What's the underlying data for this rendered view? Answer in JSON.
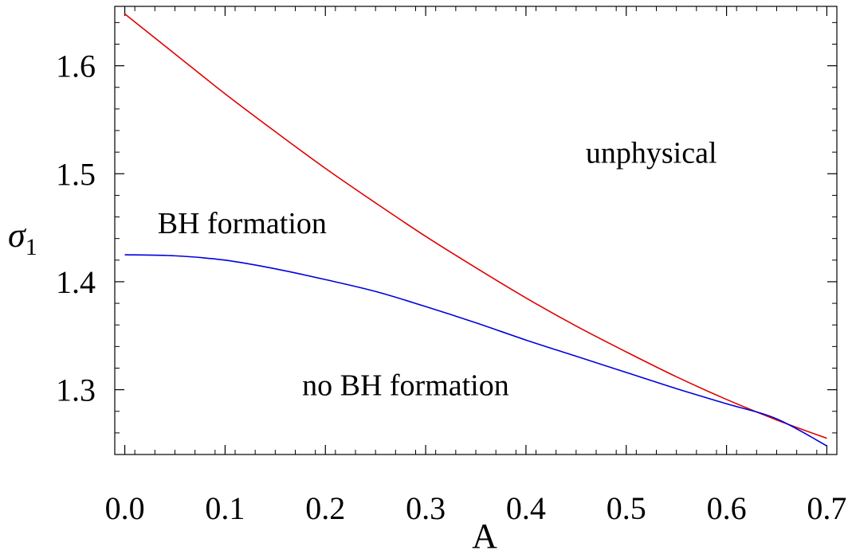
{
  "chart_data": {
    "type": "line",
    "xlabel": "A",
    "ylabel": "σ",
    "ylabel_subscript": "1",
    "xlim": [
      -0.01,
      0.71
    ],
    "ylim": [
      1.24,
      1.655
    ],
    "x_ticks": [
      {
        "value": 0.0,
        "label": "0.0"
      },
      {
        "value": 0.1,
        "label": "0.1"
      },
      {
        "value": 0.2,
        "label": "0.2"
      },
      {
        "value": 0.3,
        "label": "0.3"
      },
      {
        "value": 0.4,
        "label": "0.4"
      },
      {
        "value": 0.5,
        "label": "0.5"
      },
      {
        "value": 0.6,
        "label": "0.6"
      },
      {
        "value": 0.7,
        "label": "0.7"
      }
    ],
    "y_ticks": [
      {
        "value": 1.3,
        "label": "1.3"
      },
      {
        "value": 1.4,
        "label": "1.4"
      },
      {
        "value": 1.5,
        "label": "1.5"
      },
      {
        "value": 1.6,
        "label": "1.6"
      }
    ],
    "grid": false,
    "frame": true,
    "series": [
      {
        "color": "#e00000",
        "x": [
          0.0,
          0.05,
          0.1,
          0.15,
          0.2,
          0.25,
          0.3,
          0.35,
          0.4,
          0.45,
          0.5,
          0.55,
          0.6,
          0.65,
          0.7
        ],
        "y": [
          1.648,
          1.611,
          1.574,
          1.539,
          1.505,
          1.473,
          1.442,
          1.413,
          1.385,
          1.359,
          1.335,
          1.312,
          1.291,
          1.272,
          1.255
        ]
      },
      {
        "color": "#0000dd",
        "x": [
          0.0,
          0.05,
          0.1,
          0.15,
          0.2,
          0.25,
          0.3,
          0.35,
          0.4,
          0.45,
          0.5,
          0.55,
          0.6,
          0.65,
          0.7
        ],
        "y": [
          1.425,
          1.424,
          1.42,
          1.412,
          1.402,
          1.391,
          1.377,
          1.362,
          1.346,
          1.331,
          1.316,
          1.301,
          1.287,
          1.273,
          1.248
        ]
      }
    ],
    "annotations": [
      {
        "text": "unphysical",
        "x": 0.525,
        "y": 1.51
      },
      {
        "text": "BH formation",
        "x": 0.117,
        "y": 1.445
      },
      {
        "text": "no BH formation",
        "x": 0.28,
        "y": 1.295
      }
    ]
  }
}
